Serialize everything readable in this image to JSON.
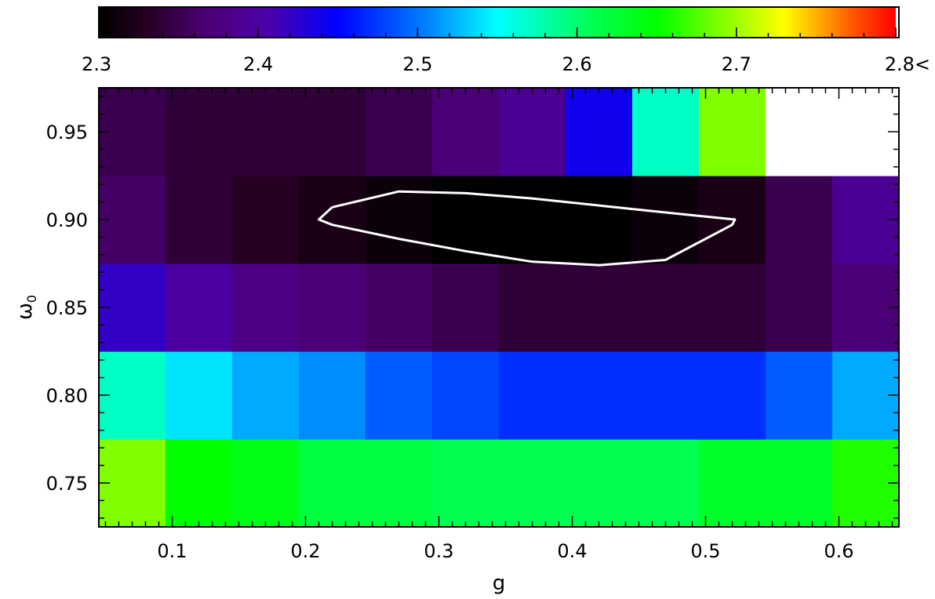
{
  "chart_data": {
    "type": "heatmap",
    "xlabel": "g",
    "ylabel": "ω",
    "ylabel_subscript": "0",
    "x_centers": [
      0.07,
      0.12,
      0.17,
      0.22,
      0.27,
      0.32,
      0.37,
      0.42,
      0.47,
      0.52,
      0.57,
      0.62
    ],
    "y_centers": [
      0.75,
      0.8,
      0.85,
      0.9,
      0.95
    ],
    "xlim": [
      0.045,
      0.645
    ],
    "ylim": [
      0.725,
      0.975
    ],
    "x_ticks": [
      0.1,
      0.2,
      0.3,
      0.4,
      0.5,
      0.6
    ],
    "x_tick_labels": [
      "0.1",
      "0.2",
      "0.3",
      "0.4",
      "0.5",
      "0.6"
    ],
    "y_ticks": [
      0.75,
      0.8,
      0.85,
      0.9,
      0.95
    ],
    "y_tick_labels": [
      "0.75",
      "0.80",
      "0.85",
      "0.90",
      "0.95"
    ],
    "values": [
      [
        2.69,
        2.65,
        2.64,
        2.62,
        2.62,
        2.61,
        2.61,
        2.61,
        2.61,
        2.63,
        2.63,
        2.66
      ],
      [
        2.57,
        2.54,
        2.52,
        2.51,
        2.49,
        2.48,
        2.47,
        2.47,
        2.47,
        2.47,
        2.49,
        2.52
      ],
      [
        2.42,
        2.4,
        2.38,
        2.37,
        2.36,
        2.35,
        2.34,
        2.34,
        2.34,
        2.34,
        2.35,
        2.37
      ],
      [
        2.36,
        2.34,
        2.33,
        2.32,
        2.31,
        2.3,
        2.3,
        2.3,
        2.31,
        2.32,
        2.35,
        2.39
      ],
      [
        2.35,
        2.34,
        2.34,
        2.34,
        2.35,
        2.37,
        2.39,
        2.44,
        2.57,
        2.69,
        2.85,
        2.85
      ]
    ],
    "colorbar": {
      "range": [
        2.3,
        2.8
      ],
      "tick_values": [
        2.3,
        2.4,
        2.5,
        2.6,
        2.7,
        2.8
      ],
      "tick_labels": [
        "2.3",
        "2.4",
        "2.5",
        "2.6",
        "2.7",
        "2.8<"
      ],
      "overflow_color": "#ffffff"
    },
    "contour": {
      "color": "#ffffff",
      "points": [
        [
          0.22,
          0.907
        ],
        [
          0.27,
          0.916
        ],
        [
          0.32,
          0.915
        ],
        [
          0.37,
          0.912
        ],
        [
          0.42,
          0.908
        ],
        [
          0.47,
          0.904
        ],
        [
          0.522,
          0.9
        ],
        [
          0.52,
          0.897
        ],
        [
          0.47,
          0.877
        ],
        [
          0.42,
          0.874
        ],
        [
          0.37,
          0.876
        ],
        [
          0.32,
          0.882
        ],
        [
          0.27,
          0.889
        ],
        [
          0.22,
          0.897
        ],
        [
          0.21,
          0.9
        ]
      ]
    },
    "colormap": [
      [
        0.0,
        "#000000"
      ],
      [
        0.06,
        "#250022"
      ],
      [
        0.13,
        "#4a0070"
      ],
      [
        0.21,
        "#4d00a8"
      ],
      [
        0.3,
        "#0000ff"
      ],
      [
        0.41,
        "#0080ff"
      ],
      [
        0.5,
        "#00ffff"
      ],
      [
        0.62,
        "#00ff50"
      ],
      [
        0.7,
        "#00ff00"
      ],
      [
        0.8,
        "#a0ff00"
      ],
      [
        0.86,
        "#ffff00"
      ],
      [
        0.9,
        "#ffb000"
      ],
      [
        0.95,
        "#ff5000"
      ],
      [
        1.0,
        "#ff0000"
      ]
    ]
  }
}
